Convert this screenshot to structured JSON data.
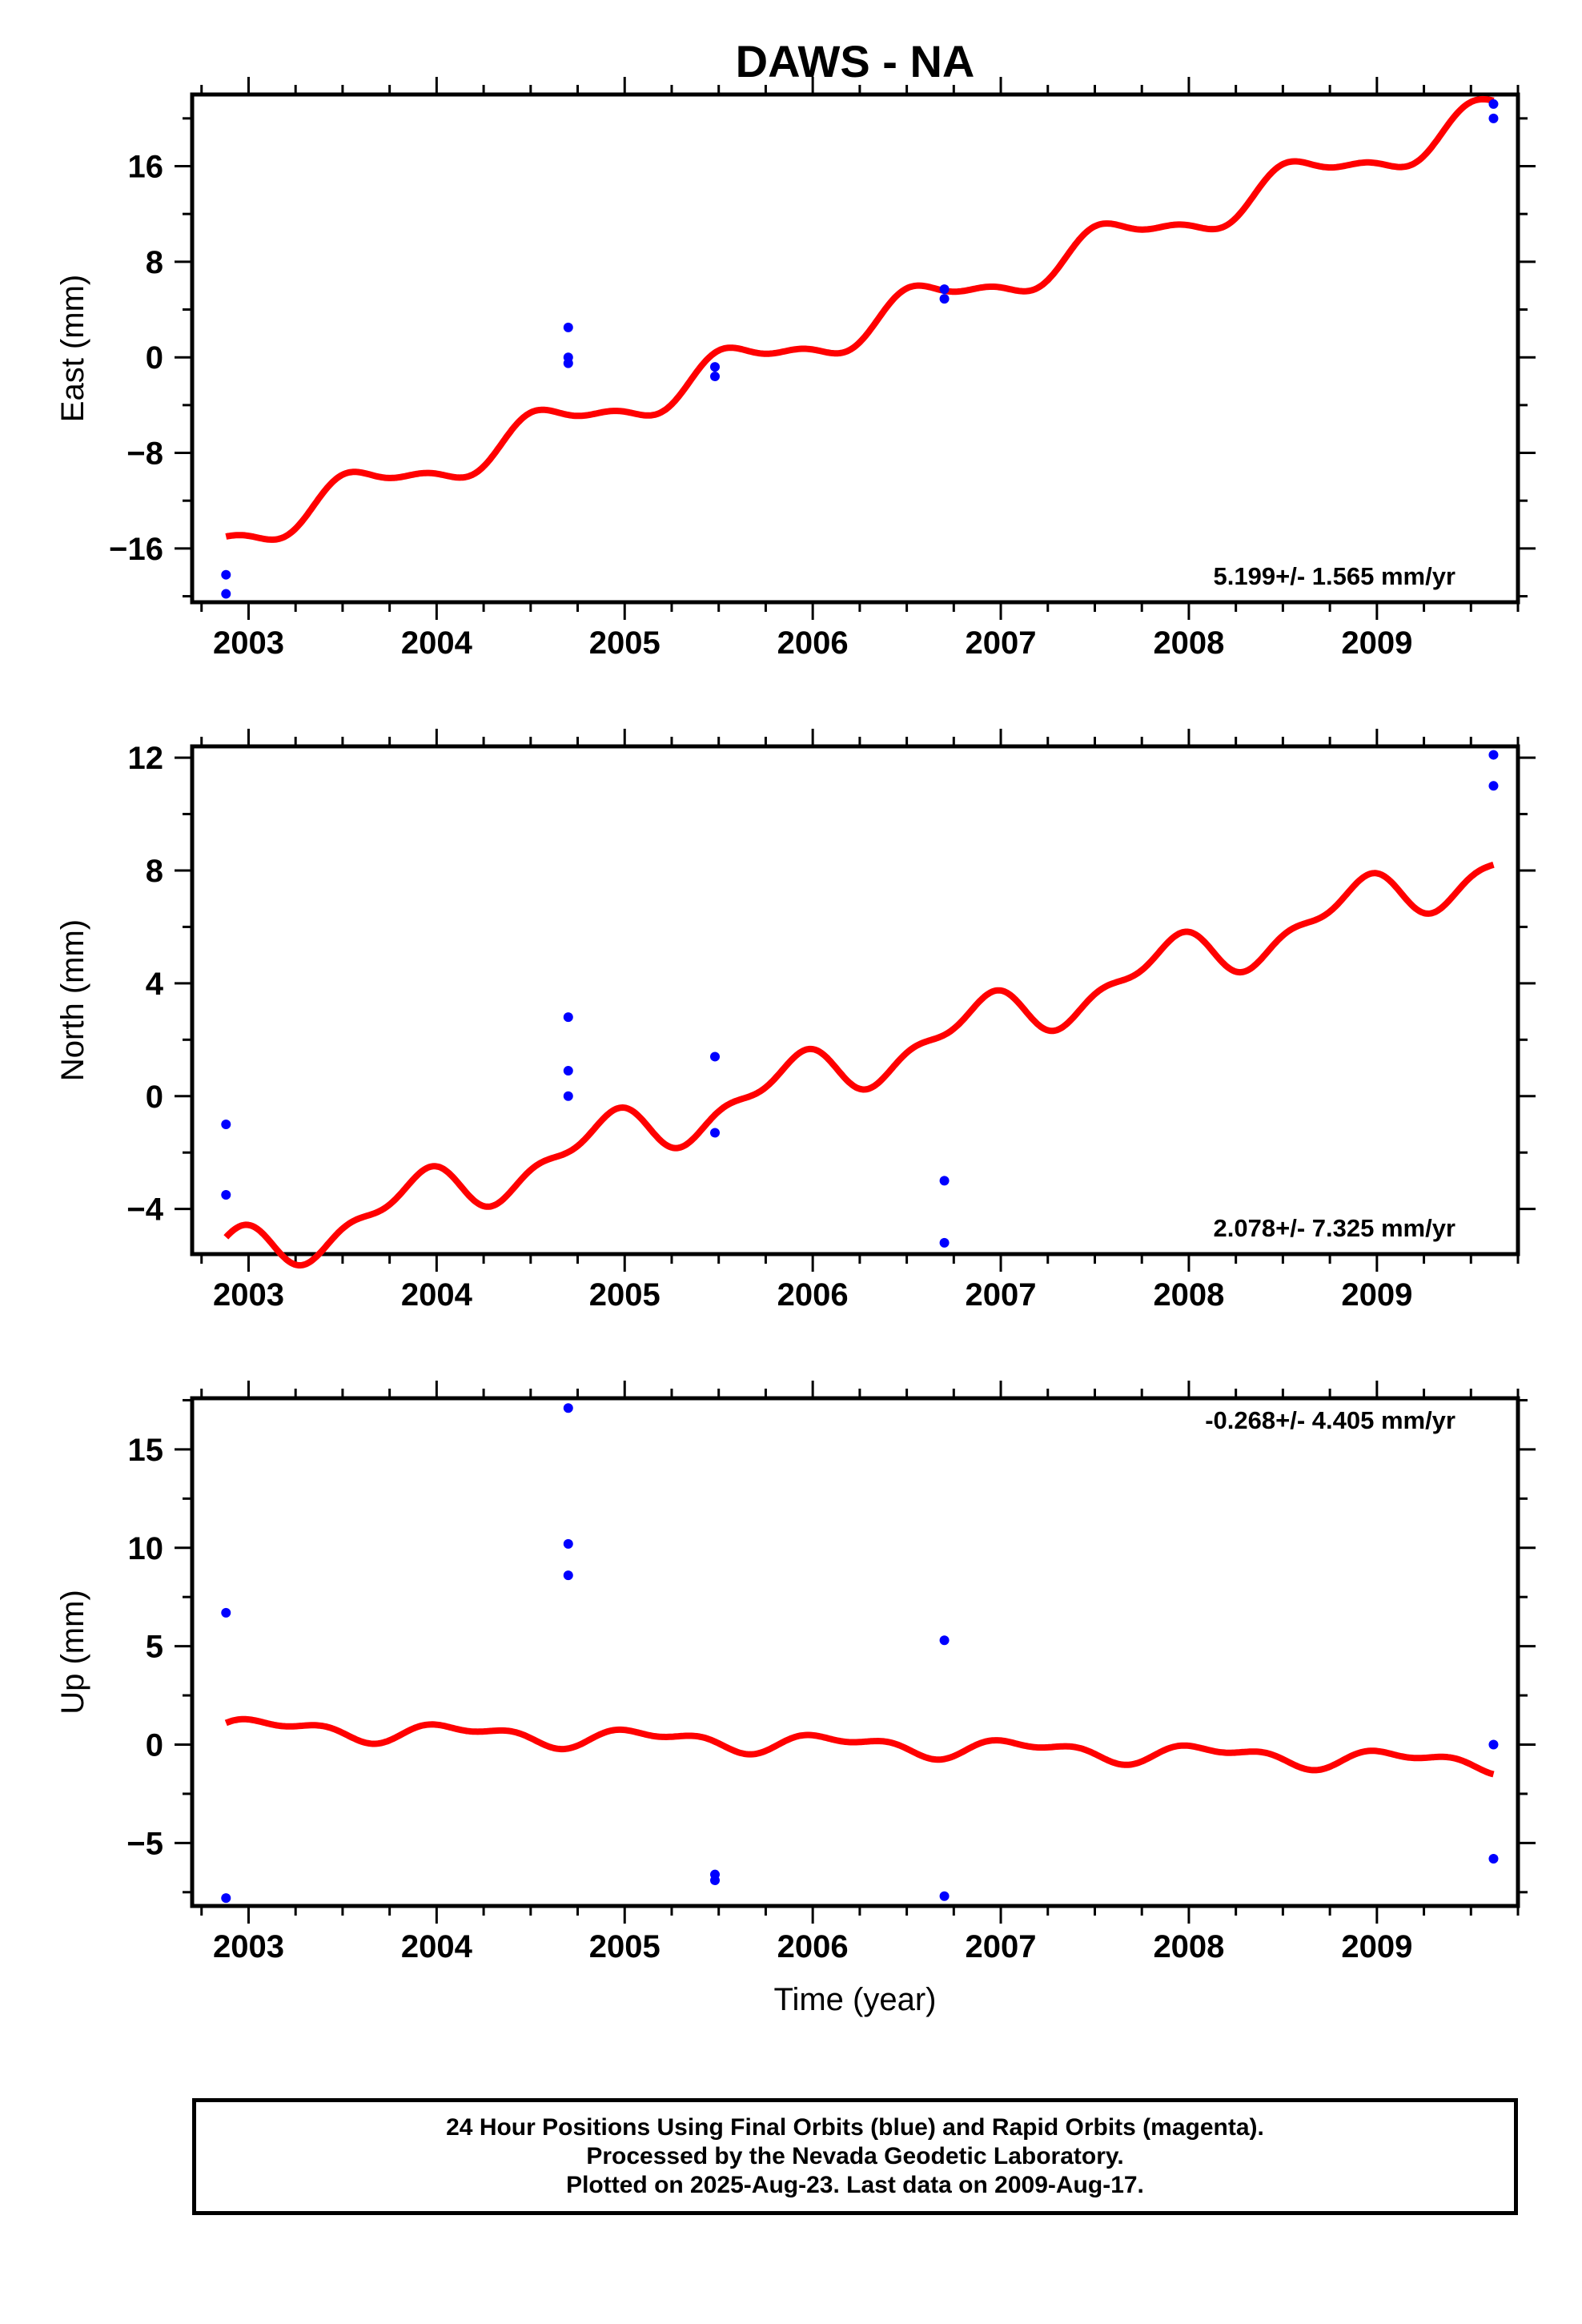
{
  "title": "DAWS - NA",
  "xlabel": "Time (year)",
  "colors": {
    "final": "#0000ff",
    "model": "#ff0000",
    "axis": "#000000"
  },
  "chart_data": [
    {
      "type": "scatter",
      "panel": "east",
      "ylabel": "East (mm)",
      "xlim": [
        2002.7,
        2009.75
      ],
      "ylim": [
        -20.5,
        22
      ],
      "yticks": [
        -16,
        -8,
        0,
        8,
        16
      ],
      "xticks": [
        2003,
        2004,
        2005,
        2006,
        2007,
        2008,
        2009
      ],
      "rate_label": "5.199+/- 1.565 mm/yr",
      "rate_position": "bottom-right",
      "points": [
        [
          2002.88,
          -18.2
        ],
        [
          2002.88,
          -19.8
        ],
        [
          2004.7,
          2.5
        ],
        [
          2004.7,
          0.0
        ],
        [
          2004.7,
          -0.5
        ],
        [
          2005.48,
          -0.8
        ],
        [
          2005.48,
          -1.6
        ],
        [
          2006.7,
          5.7
        ],
        [
          2006.7,
          4.9
        ],
        [
          2009.62,
          21.2
        ],
        [
          2009.62,
          20.0
        ]
      ],
      "model": {
        "x0": 2002.88,
        "x1": 2009.62,
        "y0": -15.0,
        "rate": 5.199,
        "amp1": 1.5,
        "phase1": -2.9,
        "amp2": 0.6,
        "phase2": 0.4
      }
    },
    {
      "type": "scatter",
      "panel": "north",
      "ylabel": "North (mm)",
      "xlim": [
        2002.7,
        2009.75
      ],
      "ylim": [
        -5.6,
        12.4
      ],
      "yticks": [
        -4,
        0,
        4,
        8,
        12
      ],
      "xticks": [
        2003,
        2004,
        2005,
        2006,
        2007,
        2008,
        2009
      ],
      "rate_label": "2.078+/- 7.325 mm/yr",
      "rate_position": "bottom-right",
      "points": [
        [
          2002.88,
          -1.0
        ],
        [
          2002.88,
          -3.5
        ],
        [
          2004.7,
          2.8
        ],
        [
          2004.7,
          0.9
        ],
        [
          2004.7,
          0.0
        ],
        [
          2005.48,
          1.4
        ],
        [
          2005.48,
          -1.3
        ],
        [
          2006.7,
          -3.0
        ],
        [
          2006.7,
          -5.2
        ],
        [
          2009.62,
          12.1
        ],
        [
          2009.62,
          11.0
        ]
      ],
      "model": {
        "x0": 2002.88,
        "x1": 2009.62,
        "y0": -5.0,
        "rate": 2.078,
        "amp1": 0.8,
        "phase1": 1.57,
        "amp2": 0.4,
        "phase2": 0.0
      }
    },
    {
      "type": "scatter",
      "panel": "up",
      "ylabel": "Up (mm)",
      "xlim": [
        2002.7,
        2009.75
      ],
      "ylim": [
        -8.2,
        17.6
      ],
      "yticks": [
        -5,
        0,
        5,
        10,
        15
      ],
      "xticks": [
        2003,
        2004,
        2005,
        2006,
        2007,
        2008,
        2009
      ],
      "rate_label": "-0.268+/- 4.405 mm/yr",
      "rate_position": "top-right",
      "points": [
        [
          2002.88,
          6.7
        ],
        [
          2002.88,
          -7.8
        ],
        [
          2004.7,
          17.1
        ],
        [
          2004.7,
          10.2
        ],
        [
          2004.7,
          8.6
        ],
        [
          2005.48,
          -6.6
        ],
        [
          2005.48,
          -6.9
        ],
        [
          2006.7,
          5.3
        ],
        [
          2006.7,
          -7.7
        ],
        [
          2009.62,
          0.0
        ],
        [
          2009.62,
          -5.8
        ]
      ],
      "model": {
        "x0": 2002.88,
        "x1": 2009.62,
        "y0": 1.1,
        "rate": -0.268,
        "amp1": 0.4,
        "phase1": 0.0,
        "amp2": 0.25,
        "phase2": 1.0
      }
    }
  ],
  "caption": {
    "line1": "24 Hour Positions Using Final Orbits (blue) and Rapid Orbits (magenta).",
    "line2": "Processed by the Nevada Geodetic Laboratory.",
    "line3": "Plotted on 2025-Aug-23. Last data on 2009-Aug-17."
  }
}
